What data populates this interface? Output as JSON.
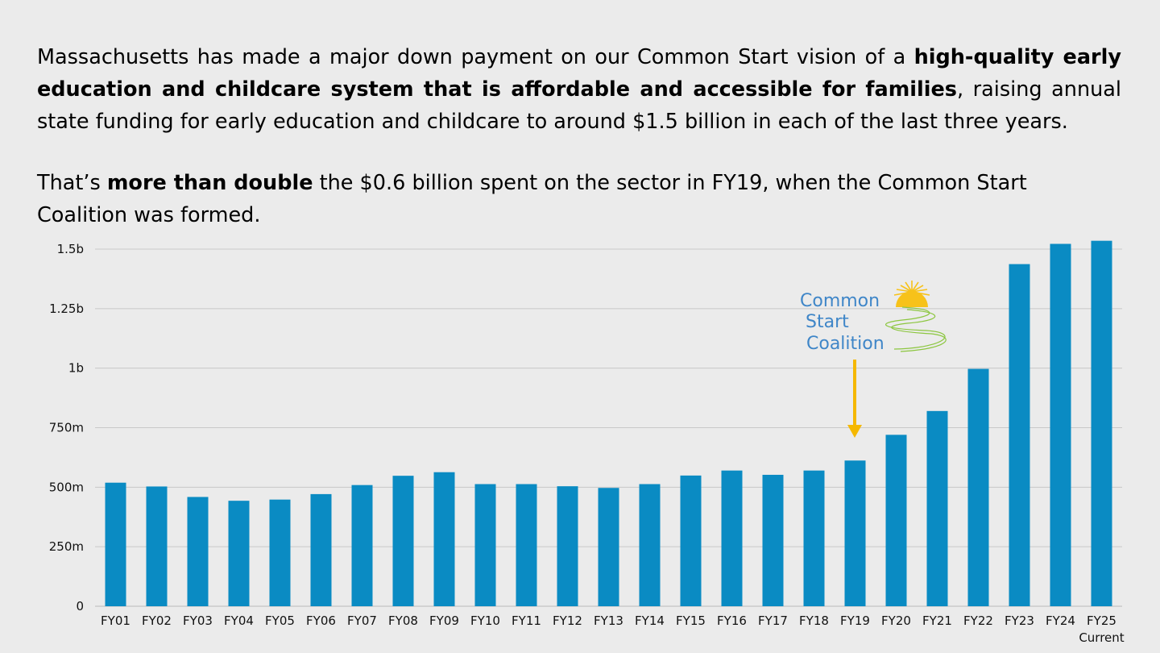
{
  "paragraph1": {
    "part1": "Massachusetts has made a major down payment on our Common Start vision of a ",
    "bold": "high-quality early education and childcare system that is affordable and accessible for families",
    "part2": ", raising annual state funding for early education and childcare to around $1.5 billion in each of the last three years."
  },
  "paragraph2": {
    "part1": "That’s ",
    "bold": "more than double",
    "part2": " the $0.6 billion spent on the sector in FY19, when the Common Start Coalition was formed."
  },
  "logo": {
    "line1": "Common",
    "line2": "Start",
    "line3": "Coalition"
  },
  "colors": {
    "bar": "#0a8bc3",
    "arrow": "#f5b800",
    "logo_text": "#3f86c8",
    "logo_sun": "#f7c21a",
    "logo_path": "#8cc63f",
    "grid": "#c8c8c8",
    "background": "#ebebeb"
  },
  "chart_data": {
    "type": "bar",
    "title": "",
    "xlabel": "",
    "ylabel": "",
    "categories": [
      "FY01",
      "FY02",
      "FY03",
      "FY04",
      "FY05",
      "FY06",
      "FY07",
      "FY08",
      "FY09",
      "FY10",
      "FY11",
      "FY12",
      "FY13",
      "FY14",
      "FY15",
      "FY16",
      "FY17",
      "FY18",
      "FY19",
      "FY20",
      "FY21",
      "FY22",
      "FY23",
      "FY24",
      "FY25"
    ],
    "category_sublabels": {
      "FY25": "Current"
    },
    "values": [
      519,
      503,
      459,
      443,
      448,
      471,
      509,
      548,
      563,
      513,
      513,
      504,
      497,
      513,
      549,
      570,
      552,
      570,
      612,
      720,
      820,
      997,
      1437,
      1522,
      1535
    ],
    "value_unit": "millions of dollars",
    "ylim": [
      0,
      1500
    ],
    "yticks": [
      0,
      250,
      500,
      750,
      1000,
      1250,
      1500
    ],
    "ytick_labels": [
      "0",
      "250m",
      "500m",
      "750m",
      "1b",
      "1.25b",
      "1.5b"
    ],
    "grid": true,
    "annotation": {
      "category": "FY19",
      "marker": "downward arrow",
      "label": "Common Start Coalition"
    }
  }
}
